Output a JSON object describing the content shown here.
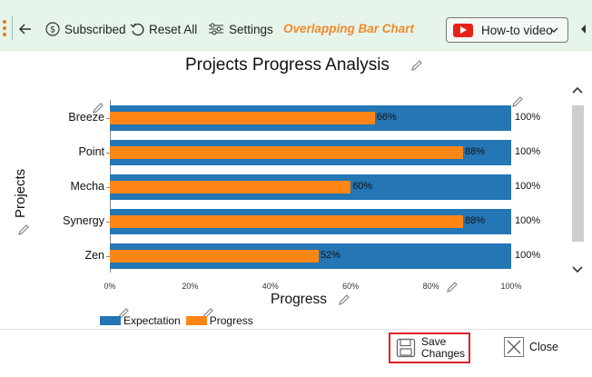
{
  "toolbar": {
    "subscribed_label": "Subscribed",
    "reset_label": "Reset All",
    "settings_label": "Settings",
    "chart_name": "Overlapping Bar Chart",
    "howto_label": "How-to video"
  },
  "colors": {
    "expectation": "#2476b4",
    "progress": "#ff8515",
    "toolbar_bg": "#e6f4ea",
    "accent": "#f08a2c"
  },
  "chart_data": {
    "type": "bar",
    "orientation": "horizontal",
    "title": "Projects Progress Analysis",
    "xlabel": "Progress",
    "ylabel": "Projects",
    "categories": [
      "Breeze",
      "Point",
      "Mecha",
      "Synergy",
      "Zen"
    ],
    "series": [
      {
        "name": "Expectation",
        "values": [
          100,
          100,
          100,
          100,
          100
        ],
        "labels": [
          "100%",
          "100%",
          "100%",
          "100%",
          "100%"
        ]
      },
      {
        "name": "Progress",
        "values": [
          66,
          88,
          60,
          88,
          52
        ],
        "labels": [
          "66%",
          "88%",
          "60%",
          "88%",
          "52%"
        ]
      }
    ],
    "xlim": [
      0,
      100
    ],
    "xticks": [
      "0%",
      "20%",
      "40%",
      "60%",
      "80%",
      "100%"
    ],
    "legend_position": "bottom-left",
    "grid": false
  },
  "footer": {
    "save_label_line1": "Save",
    "save_label_line2": "Changes",
    "close_label": "Close"
  }
}
